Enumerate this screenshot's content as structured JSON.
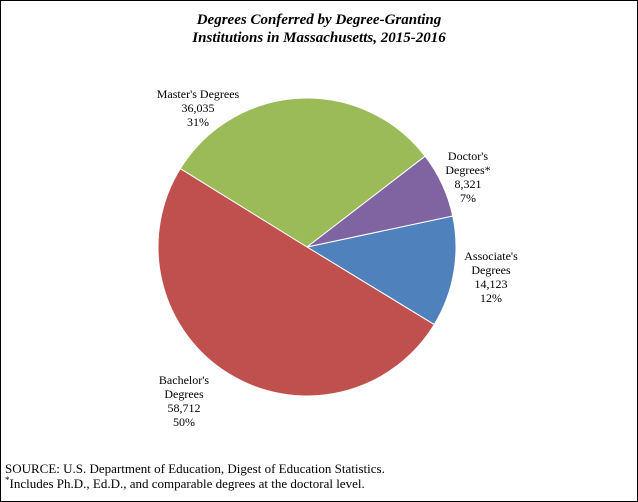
{
  "chart_data": {
    "type": "pie",
    "title": "Degrees Conferred by Degree-Granting Institutions in Massachusetts, 2015-2016",
    "title_lines": [
      "Degrees Conferred by Degree-Granting",
      "Institutions in Massachusetts, 2015-2016"
    ],
    "slices": [
      {
        "name_lines": [
          "Associate's",
          "Degrees"
        ],
        "value": 14123,
        "value_label": "14,123",
        "percent_label": "12%",
        "color": "#4F81BD"
      },
      {
        "name_lines": [
          "Bachelor's",
          "Degrees"
        ],
        "value": 58712,
        "value_label": "58,712",
        "percent_label": "50%",
        "color": "#C0504D"
      },
      {
        "name_lines": [
          "Master's Degrees"
        ],
        "value": 36035,
        "value_label": "36,035",
        "percent_label": "31%",
        "color": "#9BBB59"
      },
      {
        "name_lines": [
          "Doctor's",
          "Degrees*"
        ],
        "value": 8321,
        "value_label": "8,321",
        "percent_label": "7%",
        "color": "#8064A2"
      }
    ],
    "legend": "none"
  },
  "footer": {
    "source": "SOURCE: U.S. Department of Education, Digest of Education Statistics.",
    "note_marker": "*",
    "note": "Includes Ph.D., Ed.D., and comparable degrees at the doctoral level."
  }
}
